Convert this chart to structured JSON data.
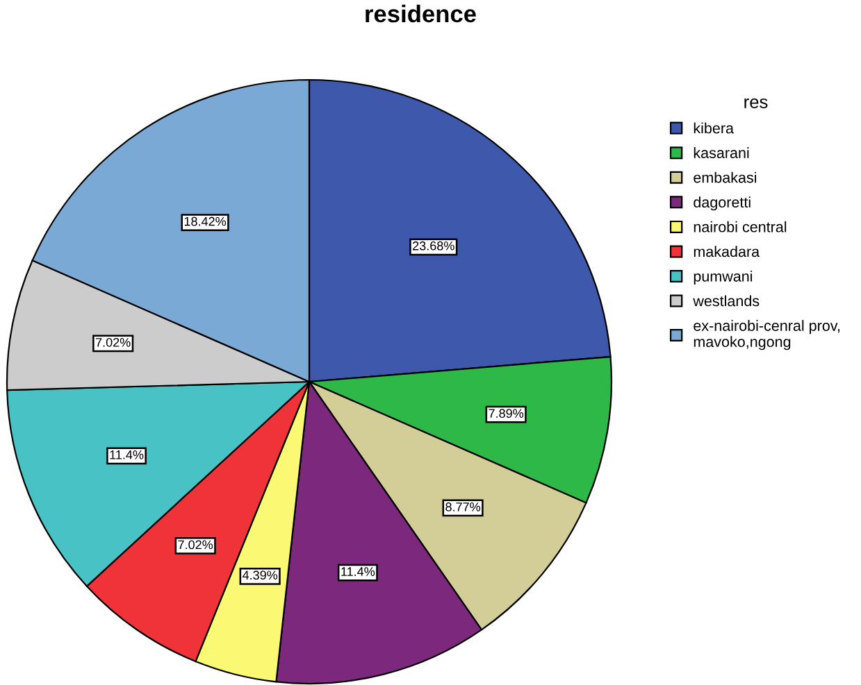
{
  "chart_data": {
    "type": "pie",
    "title": "residence",
    "legend_title": "res",
    "categories": [
      "kibera",
      "kasarani",
      "embakasi",
      "dagoretti",
      "nairobi central",
      "makadara",
      "pumwani",
      "westlands",
      "ex-nairobi-cenral prov,\nmavoko,ngong"
    ],
    "values": [
      23.68,
      7.89,
      8.77,
      11.4,
      4.39,
      7.02,
      11.4,
      7.02,
      18.42
    ],
    "value_labels": [
      "23.68%",
      "7.89%",
      "8.77%",
      "11.4%",
      "4.39%",
      "7.02%",
      "11.4%",
      "7.02%",
      "18.42%"
    ],
    "colors": [
      "#3e58ac",
      "#2eb848",
      "#d3ce97",
      "#7b287d",
      "#fbf873",
      "#ef3338",
      "#48c2c5",
      "#cccccc",
      "#7ba9d5"
    ],
    "legend": "right"
  }
}
